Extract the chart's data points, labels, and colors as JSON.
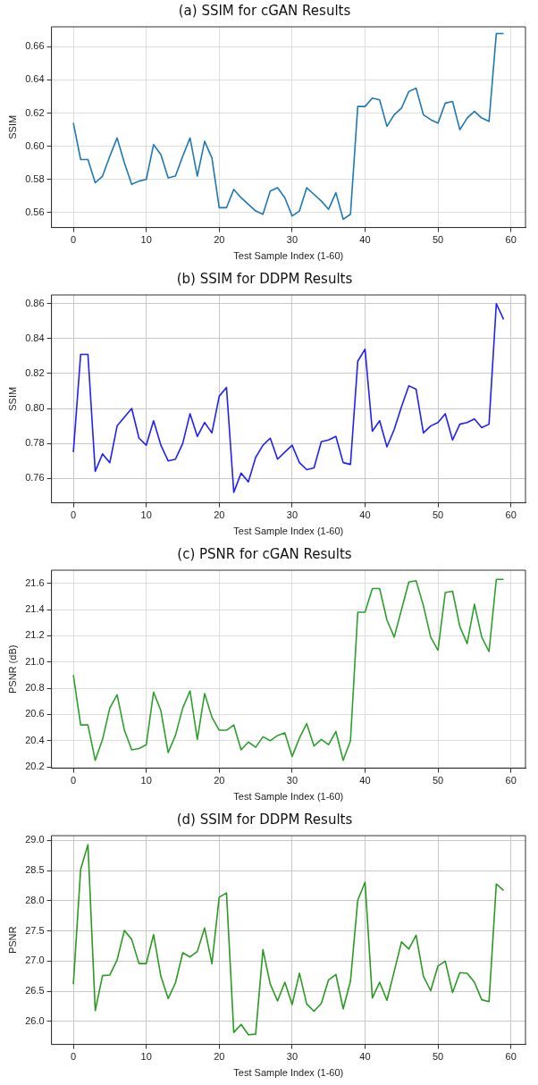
{
  "chart_data": [
    {
      "type": "line",
      "title": "(a) SSIM for cGAN Results",
      "xlabel": "Test Sample Index (1-60)",
      "ylabel": "SSIM",
      "grid": true,
      "marker": "none",
      "line_style": "solid",
      "x": [
        0,
        1,
        2,
        3,
        4,
        5,
        6,
        7,
        8,
        9,
        10,
        11,
        12,
        13,
        14,
        15,
        16,
        17,
        18,
        19,
        20,
        21,
        22,
        23,
        24,
        25,
        26,
        27,
        28,
        29,
        30,
        31,
        32,
        33,
        34,
        35,
        36,
        37,
        38,
        39,
        40,
        41,
        42,
        43,
        44,
        45,
        46,
        47,
        48,
        49,
        50,
        51,
        52,
        53,
        54,
        55,
        56,
        57,
        58,
        59
      ],
      "series": [
        {
          "color": "#1f77b4",
          "values": [
            0.614,
            0.592,
            0.592,
            0.578,
            0.582,
            0.594,
            0.605,
            0.59,
            0.577,
            0.579,
            0.58,
            0.601,
            0.595,
            0.581,
            0.582,
            0.594,
            0.605,
            0.582,
            0.603,
            0.593,
            0.563,
            0.563,
            0.574,
            0.569,
            0.565,
            0.561,
            0.559,
            0.573,
            0.575,
            0.569,
            0.558,
            0.561,
            0.575,
            0.571,
            0.567,
            0.562,
            0.572,
            0.556,
            0.559,
            0.624,
            0.624,
            0.629,
            0.628,
            0.612,
            0.619,
            0.623,
            0.633,
            0.635,
            0.619,
            0.616,
            0.614,
            0.626,
            0.627,
            0.61,
            0.617,
            0.621,
            0.617,
            0.615,
            0.668,
            0.668
          ]
        }
      ],
      "xlim": [
        -3,
        62
      ],
      "xticks": [
        0,
        10,
        20,
        30,
        40,
        50,
        60
      ],
      "ylim": [
        0.551,
        0.672
      ],
      "yticks": [
        0.56,
        0.58,
        {
          "value": 0.6,
          "label": "0.60"
        },
        0.62,
        0.64,
        0.66
      ]
    },
    {
      "type": "line",
      "title": "(b) SSIM for DDPM Results",
      "xlabel": "Test Sample Index (1-60)",
      "ylabel": "SSIM",
      "grid": true,
      "marker": "none",
      "line_style": "solid",
      "x": [
        0,
        1,
        2,
        3,
        4,
        5,
        6,
        7,
        8,
        9,
        10,
        11,
        12,
        13,
        14,
        15,
        16,
        17,
        18,
        19,
        20,
        21,
        22,
        23,
        24,
        25,
        26,
        27,
        28,
        29,
        30,
        31,
        32,
        33,
        34,
        35,
        36,
        37,
        38,
        39,
        40,
        41,
        42,
        43,
        44,
        45,
        46,
        47,
        48,
        49,
        50,
        51,
        52,
        53,
        54,
        55,
        56,
        57,
        58,
        59
      ],
      "series": [
        {
          "color": "#1f1fff",
          "values": [
            0.775,
            0.831,
            0.831,
            0.764,
            0.774,
            0.769,
            0.79,
            0.795,
            0.8,
            0.783,
            0.779,
            0.793,
            0.779,
            0.77,
            0.771,
            0.78,
            0.797,
            0.784,
            0.792,
            0.786,
            0.807,
            0.812,
            0.752,
            0.763,
            0.758,
            0.772,
            0.779,
            0.783,
            0.771,
            0.775,
            0.779,
            0.769,
            0.765,
            0.766,
            0.781,
            0.782,
            0.784,
            0.769,
            0.768,
            0.827,
            0.834,
            0.787,
            0.793,
            0.778,
            0.788,
            0.801,
            0.813,
            0.811,
            0.786,
            0.79,
            0.792,
            0.797,
            0.782,
            0.791,
            0.792,
            0.794,
            0.789,
            0.791,
            0.86,
            0.851
          ]
        }
      ],
      "xlim": [
        -3,
        62
      ],
      "xticks": [
        0,
        10,
        20,
        30,
        40,
        50,
        60
      ],
      "ylim": [
        0.746,
        0.865
      ],
      "yticks": [
        0.76,
        0.78,
        {
          "value": 0.8,
          "label": "0.80"
        },
        0.82,
        0.84,
        0.86
      ]
    },
    {
      "type": "line",
      "title": "(c) PSNR for cGAN Results",
      "xlabel": "Test Sample Index (1-60)",
      "ylabel": "PSNR (dB)",
      "grid": true,
      "marker": "none",
      "line_style": "solid",
      "x": [
        0,
        1,
        2,
        3,
        4,
        5,
        6,
        7,
        8,
        9,
        10,
        11,
        12,
        13,
        14,
        15,
        16,
        17,
        18,
        19,
        20,
        21,
        22,
        23,
        24,
        25,
        26,
        27,
        28,
        29,
        30,
        31,
        32,
        33,
        34,
        35,
        36,
        37,
        38,
        39,
        40,
        41,
        42,
        43,
        44,
        45,
        46,
        47,
        48,
        49,
        50,
        51,
        52,
        53,
        54,
        55,
        56,
        57,
        58,
        59
      ],
      "series": [
        {
          "color": "#2ca02c",
          "values": [
            20.9,
            20.52,
            20.52,
            20.25,
            20.41,
            20.65,
            20.75,
            20.48,
            20.33,
            20.34,
            20.37,
            20.77,
            20.63,
            20.31,
            20.44,
            20.65,
            20.78,
            20.41,
            20.76,
            20.58,
            20.48,
            20.48,
            20.52,
            20.33,
            20.39,
            20.35,
            20.43,
            20.4,
            20.44,
            20.46,
            20.28,
            20.42,
            20.53,
            20.36,
            20.41,
            20.37,
            20.47,
            20.25,
            20.4,
            21.38,
            21.38,
            21.56,
            21.56,
            21.32,
            21.19,
            21.4,
            21.61,
            21.62,
            21.43,
            21.19,
            21.09,
            21.53,
            21.54,
            21.27,
            21.14,
            21.44,
            21.19,
            21.08,
            21.63,
            21.63
          ]
        }
      ],
      "xlim": [
        -3,
        62
      ],
      "xticks": [
        0,
        10,
        20,
        30,
        40,
        50,
        60
      ],
      "ylim": [
        20.19,
        21.7
      ],
      "yticks": [
        20.2,
        20.4,
        20.6,
        20.8,
        {
          "value": 21,
          "label": "21.0"
        },
        21.2,
        21.4,
        21.6
      ]
    },
    {
      "type": "line",
      "title": "(d) SSIM for DDPM Results",
      "xlabel": "Test Sample Index (1-60)",
      "ylabel": "PSNR",
      "grid": true,
      "marker": "none",
      "line_style": "solid",
      "x": [
        0,
        1,
        2,
        3,
        4,
        5,
        6,
        7,
        8,
        9,
        10,
        11,
        12,
        13,
        14,
        15,
        16,
        17,
        18,
        19,
        20,
        21,
        22,
        23,
        24,
        25,
        26,
        27,
        28,
        29,
        30,
        31,
        32,
        33,
        34,
        35,
        36,
        37,
        38,
        39,
        40,
        41,
        42,
        43,
        44,
        45,
        46,
        47,
        48,
        49,
        50,
        51,
        52,
        53,
        54,
        55,
        56,
        57,
        58,
        59
      ],
      "series": [
        {
          "color": "#2b9a22",
          "values": [
            26.62,
            28.52,
            28.93,
            26.18,
            26.76,
            26.77,
            27.02,
            27.51,
            27.36,
            26.96,
            26.96,
            27.44,
            26.75,
            26.38,
            26.64,
            27.14,
            27.07,
            27.16,
            27.55,
            26.96,
            28.06,
            28.13,
            25.82,
            25.95,
            25.78,
            25.79,
            27.19,
            26.62,
            26.34,
            26.65,
            26.28,
            26.8,
            26.29,
            26.17,
            26.3,
            26.69,
            26.78,
            26.21,
            26.67,
            28.01,
            28.31,
            26.39,
            26.65,
            26.35,
            26.83,
            27.32,
            27.2,
            27.43,
            26.75,
            26.51,
            26.92,
            27.0,
            26.48,
            26.81,
            26.8,
            26.65,
            26.36,
            26.33,
            28.28,
            28.17
          ]
        }
      ],
      "xlim": [
        -3,
        62
      ],
      "xticks": [
        0,
        10,
        20,
        30,
        40,
        50,
        60
      ],
      "ylim": [
        25.62,
        29.08
      ],
      "yticks": [
        {
          "value": 26,
          "label": "26.0"
        },
        26.5,
        {
          "value": 27,
          "label": "27.0"
        },
        27.5,
        {
          "value": 28,
          "label": "28.0"
        },
        28.5,
        {
          "value": 29,
          "label": "29.0"
        }
      ]
    }
  ]
}
